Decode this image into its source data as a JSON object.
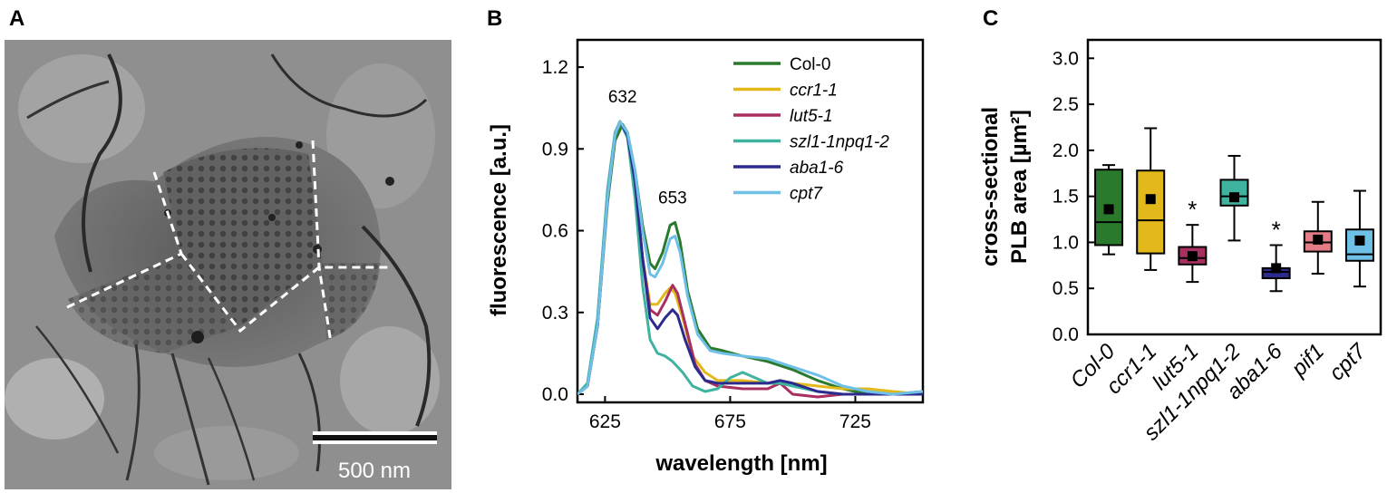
{
  "panels": {
    "a": "A",
    "b": "B",
    "c": "C"
  },
  "micrograph": {
    "scale_label": "500 nm"
  },
  "colors": {
    "Col-0": "#2a7a2e",
    "ccr1-1": "#e2b81b",
    "lut5-1": "#a83060",
    "szl1-1npq1-2": "#3fb3a0",
    "aba1-6": "#2c2a8c",
    "cpt7": "#6fc0e6",
    "pif1": "#e27d87"
  },
  "chart_data": [
    {
      "type": "line",
      "title": "",
      "xlabel": "wavelength [nm]",
      "ylabel": "fluorescence [a.u.]",
      "xlim": [
        614,
        752
      ],
      "ylim": [
        -0.03,
        1.3
      ],
      "xticks": [
        625,
        675,
        725
      ],
      "yticks": [
        0.0,
        0.3,
        0.6,
        0.9,
        1.2
      ],
      "ytick_labels": [
        "0.0",
        "0.3",
        "0.6",
        "0.9",
        "1.2"
      ],
      "xtick_labels": [
        "625",
        "675",
        "725"
      ],
      "annotations": [
        {
          "text": "632",
          "x": 632,
          "y": 1.07
        },
        {
          "text": "653",
          "x": 652,
          "y": 0.7
        }
      ],
      "series": [
        {
          "name": "Col-0",
          "points": [
            [
              614,
              0.0
            ],
            [
              618,
              0.03
            ],
            [
              622,
              0.25
            ],
            [
              626,
              0.7
            ],
            [
              629,
              0.93
            ],
            [
              632,
              0.99
            ],
            [
              634,
              0.96
            ],
            [
              637,
              0.82
            ],
            [
              640,
              0.62
            ],
            [
              643,
              0.48
            ],
            [
              645,
              0.46
            ],
            [
              648,
              0.52
            ],
            [
              651,
              0.62
            ],
            [
              653,
              0.63
            ],
            [
              655,
              0.56
            ],
            [
              658,
              0.38
            ],
            [
              662,
              0.24
            ],
            [
              667,
              0.17
            ],
            [
              672,
              0.16
            ],
            [
              680,
              0.14
            ],
            [
              690,
              0.12
            ],
            [
              700,
              0.09
            ],
            [
              710,
              0.05
            ],
            [
              720,
              0.02
            ],
            [
              730,
              0.0
            ],
            [
              740,
              0.0
            ],
            [
              752,
              0.01
            ]
          ]
        },
        {
          "name": "ccr1-1",
          "points": [
            [
              614,
              0.0
            ],
            [
              618,
              0.03
            ],
            [
              622,
              0.25
            ],
            [
              626,
              0.72
            ],
            [
              629,
              0.95
            ],
            [
              631,
              1.0
            ],
            [
              634,
              0.95
            ],
            [
              637,
              0.78
            ],
            [
              640,
              0.5
            ],
            [
              643,
              0.33
            ],
            [
              646,
              0.33
            ],
            [
              649,
              0.37
            ],
            [
              651,
              0.39
            ],
            [
              653,
              0.37
            ],
            [
              656,
              0.28
            ],
            [
              660,
              0.14
            ],
            [
              665,
              0.08
            ],
            [
              670,
              0.05
            ],
            [
              680,
              0.05
            ],
            [
              690,
              0.04
            ],
            [
              700,
              0.04
            ],
            [
              710,
              0.03
            ],
            [
              720,
              0.02
            ],
            [
              730,
              0.02
            ],
            [
              740,
              0.01
            ],
            [
              752,
              0.0
            ]
          ]
        },
        {
          "name": "lut5-1",
          "points": [
            [
              614,
              0.0
            ],
            [
              618,
              0.03
            ],
            [
              622,
              0.25
            ],
            [
              626,
              0.72
            ],
            [
              629,
              0.95
            ],
            [
              631,
              1.0
            ],
            [
              634,
              0.95
            ],
            [
              637,
              0.78
            ],
            [
              640,
              0.5
            ],
            [
              643,
              0.31
            ],
            [
              646,
              0.29
            ],
            [
              649,
              0.34
            ],
            [
              652,
              0.4
            ],
            [
              654,
              0.37
            ],
            [
              657,
              0.26
            ],
            [
              661,
              0.11
            ],
            [
              665,
              0.05
            ],
            [
              670,
              0.03
            ],
            [
              680,
              0.02
            ],
            [
              690,
              0.02
            ],
            [
              695,
              0.04
            ],
            [
              700,
              0.0
            ],
            [
              710,
              -0.01
            ],
            [
              720,
              0.0
            ],
            [
              730,
              0.0
            ],
            [
              740,
              0.0
            ],
            [
              752,
              0.0
            ]
          ]
        },
        {
          "name": "szl1-1npq1-2",
          "points": [
            [
              614,
              0.0
            ],
            [
              618,
              0.04
            ],
            [
              622,
              0.28
            ],
            [
              626,
              0.75
            ],
            [
              629,
              0.96
            ],
            [
              631,
              1.0
            ],
            [
              634,
              0.94
            ],
            [
              637,
              0.72
            ],
            [
              640,
              0.4
            ],
            [
              643,
              0.2
            ],
            [
              646,
              0.15
            ],
            [
              649,
              0.14
            ],
            [
              652,
              0.12
            ],
            [
              656,
              0.08
            ],
            [
              660,
              0.03
            ],
            [
              665,
              0.01
            ],
            [
              670,
              0.02
            ],
            [
              675,
              0.06
            ],
            [
              680,
              0.08
            ],
            [
              685,
              0.06
            ],
            [
              690,
              0.04
            ],
            [
              695,
              0.04
            ],
            [
              700,
              0.03
            ],
            [
              710,
              0.01
            ],
            [
              720,
              0.0
            ],
            [
              730,
              0.0
            ],
            [
              740,
              0.0
            ],
            [
              752,
              0.0
            ]
          ]
        },
        {
          "name": "aba1-6",
          "points": [
            [
              614,
              0.0
            ],
            [
              618,
              0.03
            ],
            [
              622,
              0.25
            ],
            [
              626,
              0.72
            ],
            [
              629,
              0.95
            ],
            [
              631,
              1.0
            ],
            [
              634,
              0.95
            ],
            [
              637,
              0.78
            ],
            [
              640,
              0.5
            ],
            [
              643,
              0.28
            ],
            [
              646,
              0.24
            ],
            [
              649,
              0.28
            ],
            [
              652,
              0.31
            ],
            [
              654,
              0.29
            ],
            [
              657,
              0.2
            ],
            [
              661,
              0.1
            ],
            [
              665,
              0.05
            ],
            [
              670,
              0.04
            ],
            [
              680,
              0.04
            ],
            [
              690,
              0.04
            ],
            [
              695,
              0.05
            ],
            [
              700,
              0.04
            ],
            [
              710,
              0.01
            ],
            [
              720,
              0.0
            ],
            [
              730,
              0.0
            ],
            [
              740,
              0.0
            ],
            [
              752,
              0.0
            ]
          ]
        },
        {
          "name": "cpt7",
          "points": [
            [
              614,
              0.0
            ],
            [
              618,
              0.03
            ],
            [
              622,
              0.25
            ],
            [
              626,
              0.72
            ],
            [
              629,
              0.95
            ],
            [
              631,
              1.0
            ],
            [
              634,
              0.96
            ],
            [
              637,
              0.82
            ],
            [
              640,
              0.6
            ],
            [
              643,
              0.44
            ],
            [
              645,
              0.43
            ],
            [
              648,
              0.48
            ],
            [
              651,
              0.57
            ],
            [
              653,
              0.58
            ],
            [
              655,
              0.52
            ],
            [
              658,
              0.36
            ],
            [
              662,
              0.22
            ],
            [
              667,
              0.16
            ],
            [
              672,
              0.15
            ],
            [
              680,
              0.14
            ],
            [
              690,
              0.13
            ],
            [
              700,
              0.1
            ],
            [
              710,
              0.07
            ],
            [
              720,
              0.03
            ],
            [
              730,
              0.01
            ],
            [
              740,
              0.0
            ],
            [
              752,
              0.01
            ]
          ]
        }
      ],
      "legend": {
        "placement": "top-right",
        "entries": [
          "Col-0",
          "ccr1-1",
          "lut5-1",
          "szl1-1npq1-2",
          "aba1-6",
          "cpt7"
        ]
      }
    },
    {
      "type": "box",
      "title": "",
      "xlabel": "",
      "ylabel_line1": "cross-sectional",
      "ylabel_line2": "PLB area [µm²]",
      "ylim": [
        0.0,
        3.2
      ],
      "yticks": [
        0.0,
        0.5,
        1.0,
        1.5,
        2.0,
        2.5,
        3.0
      ],
      "ytick_labels": [
        "0.0",
        "0.5",
        "1.0",
        "1.5",
        "2.0",
        "2.5",
        "3.0"
      ],
      "categories": [
        "Col-0",
        "ccr1-1",
        "lut5-1",
        "szl1-1npq1-2",
        "aba1-6",
        "pif1",
        "cpt7"
      ],
      "boxes": [
        {
          "name": "Col-0",
          "whisker_low": 0.87,
          "q1": 0.97,
          "median": 1.22,
          "q3": 1.79,
          "whisker_high": 1.84,
          "mean": 1.36,
          "sig": ""
        },
        {
          "name": "ccr1-1",
          "whisker_low": 0.7,
          "q1": 0.88,
          "median": 1.24,
          "q3": 1.78,
          "whisker_high": 2.24,
          "mean": 1.47,
          "sig": ""
        },
        {
          "name": "lut5-1",
          "whisker_low": 0.57,
          "q1": 0.76,
          "median": 0.83,
          "q3": 0.95,
          "whisker_high": 1.19,
          "mean": 0.85,
          "sig": "*"
        },
        {
          "name": "szl1-1npq1-2",
          "whisker_low": 1.02,
          "q1": 1.4,
          "median": 1.5,
          "q3": 1.68,
          "whisker_high": 1.94,
          "mean": 1.49,
          "sig": ""
        },
        {
          "name": "aba1-6",
          "whisker_low": 0.47,
          "q1": 0.61,
          "median": 0.68,
          "q3": 0.72,
          "whisker_high": 0.97,
          "mean": 0.72,
          "sig": "*"
        },
        {
          "name": "pif1",
          "whisker_low": 0.66,
          "q1": 0.9,
          "median": 1.0,
          "q3": 1.12,
          "whisker_high": 1.44,
          "mean": 1.03,
          "sig": ""
        },
        {
          "name": "cpt7",
          "whisker_low": 0.52,
          "q1": 0.8,
          "median": 0.87,
          "q3": 1.14,
          "whisker_high": 1.56,
          "mean": 1.02,
          "sig": ""
        }
      ]
    }
  ]
}
